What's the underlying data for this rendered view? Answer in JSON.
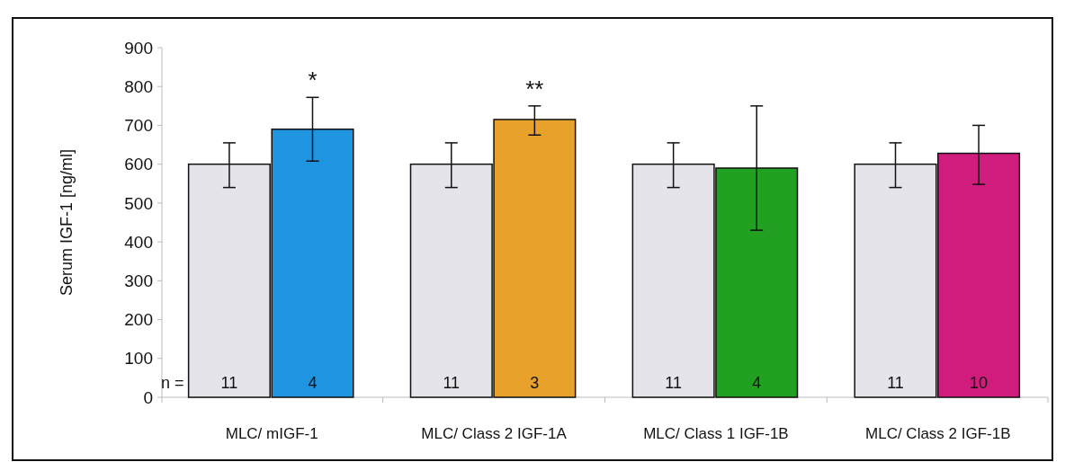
{
  "chart_data": {
    "type": "bar",
    "ylabel": "Serum IGF-1 [ng/ml]",
    "categories": [
      "MLC/ mIGF-1",
      "MLC/ Class 2 IGF-1A",
      "MLC/ Class 1 IGF-1B",
      "MLC/ Class 2 IGF-1B"
    ],
    "series": [
      {
        "color": "#e4e4ea",
        "values": [
          600,
          600,
          600,
          600
        ],
        "errors": [
          [
            540,
            655
          ],
          [
            540,
            655
          ],
          [
            540,
            655
          ],
          [
            540,
            655
          ]
        ]
      },
      {
        "colors": [
          "#1f94e0",
          "#e8a22c",
          "#22a022",
          "#d01c7c"
        ],
        "values": [
          690,
          715,
          590,
          628
        ],
        "errors": [
          [
            608,
            772
          ],
          [
            675,
            750
          ],
          [
            430,
            750
          ],
          [
            548,
            700
          ]
        ]
      }
    ],
    "ylim": [
      0,
      900
    ],
    "yticks": [
      0,
      100,
      200,
      300,
      400,
      500,
      600,
      700,
      800,
      900
    ],
    "grid": false,
    "annotations": [
      "n =",
      "11",
      "4",
      "11",
      "3",
      "11",
      "4",
      "11",
      "10",
      "*",
      "**"
    ]
  }
}
